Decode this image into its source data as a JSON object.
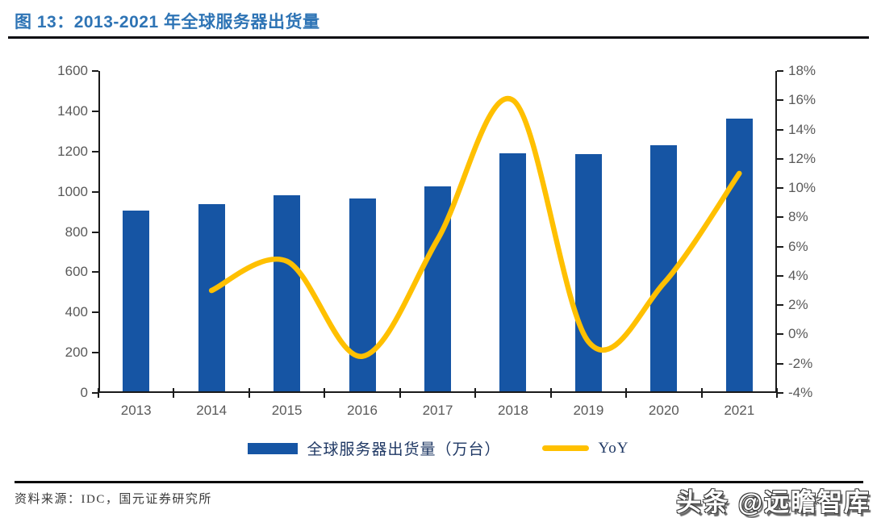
{
  "title": "图 13：2013-2021 年全球服务器出货量",
  "source": "资料来源：IDC，国元证券研究所",
  "watermark": "头条 @远瞻智库",
  "colors": {
    "bar": "#1655A4",
    "line": "#FFC000",
    "title_text": "#2E74B5",
    "legend_text": "#1F3864",
    "axis_text": "#595959",
    "axis_line": "#1a1a1a"
  },
  "chart_data": {
    "type": "bar",
    "title": "图 13：2013-2021 年全球服务器出货量",
    "categories": [
      "2013",
      "2014",
      "2015",
      "2016",
      "2017",
      "2018",
      "2019",
      "2020",
      "2021"
    ],
    "series": [
      {
        "name": "全球服务器出货量（万台）",
        "type": "bar",
        "axis": "left",
        "values": [
          900,
          930,
          975,
          960,
          1020,
          1185,
          1180,
          1225,
          1355
        ]
      },
      {
        "name": "YoY",
        "type": "line",
        "axis": "right",
        "values": [
          null,
          3,
          5,
          -1.5,
          6.5,
          16,
          -0.5,
          3.5,
          11
        ]
      }
    ],
    "left_axis": {
      "min": 0,
      "max": 1600,
      "step": 200,
      "ticks": [
        "1600",
        "1400",
        "1200",
        "1000",
        "800",
        "600",
        "400",
        "200",
        "0"
      ]
    },
    "right_axis": {
      "min": -4,
      "max": 18,
      "step": 2,
      "ticks": [
        "18%",
        "16%",
        "14%",
        "12%",
        "10%",
        "8%",
        "6%",
        "4%",
        "2%",
        "0%",
        "-2%",
        "-4%"
      ]
    },
    "grid": false,
    "legend_position": "bottom",
    "legend": [
      {
        "label": "全球服务器出货量（万台）",
        "swatch": "bar"
      },
      {
        "label": "YoY",
        "swatch": "line"
      }
    ]
  }
}
